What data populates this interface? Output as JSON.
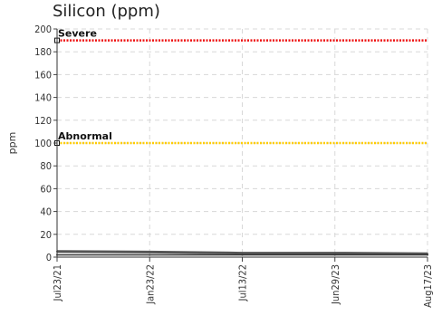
{
  "chart_data": {
    "type": "line",
    "title": "Silicon (ppm)",
    "xlabel": "",
    "ylabel": "ppm",
    "ylim": [
      0,
      200
    ],
    "yticks": [
      0,
      20,
      40,
      60,
      80,
      100,
      120,
      140,
      160,
      180,
      200
    ],
    "x": [
      "Jul23/21",
      "Jan23/22",
      "Jul13/22",
      "Jun29/23",
      "Aug17/23"
    ],
    "grid": true,
    "series": [
      {
        "values": [
          5,
          4.5,
          3.5,
          3.5,
          3
        ],
        "color": "#555555"
      },
      {
        "values": [
          2,
          2,
          2,
          2,
          2
        ],
        "color": "#333333"
      }
    ],
    "thresholds": [
      {
        "label": "Severe",
        "value": 190,
        "color": "#ee1111"
      },
      {
        "label": "Abnormal",
        "value": 100,
        "color": "#ffcc00"
      }
    ]
  }
}
